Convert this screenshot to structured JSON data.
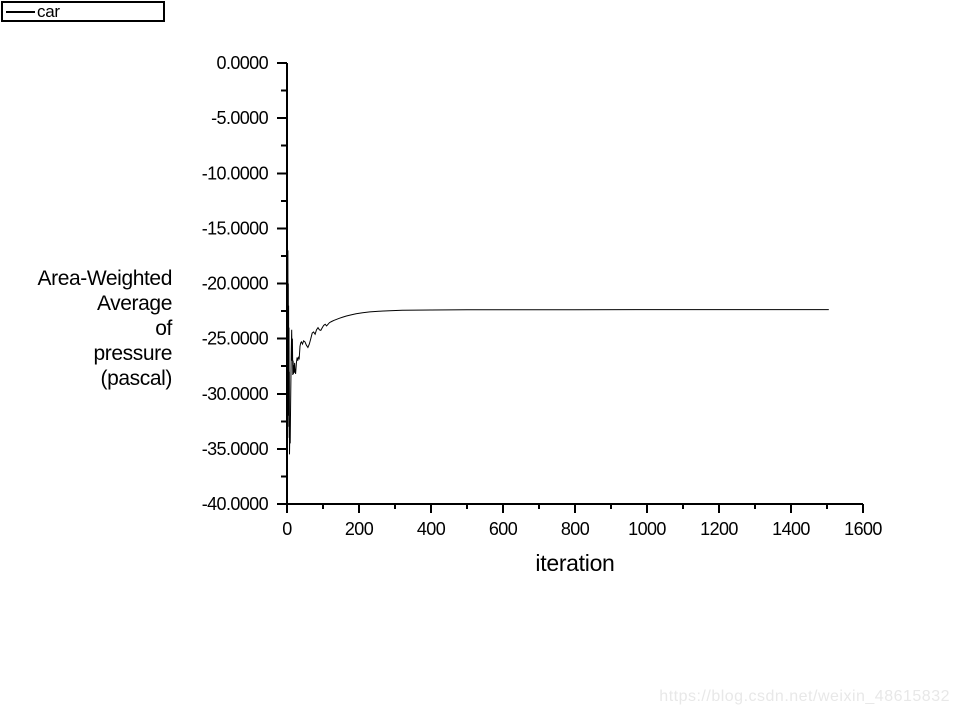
{
  "legend": {
    "series_label": "car"
  },
  "axis_titles": {
    "x": "iteration",
    "y_lines": [
      "Area-Weighted",
      "Average",
      "of",
      "pressure",
      "(pascal)"
    ]
  },
  "watermark": {
    "text": "https://blog.csdn.net/weixin_48615832",
    "color": "#e8e8e8"
  },
  "colors": {
    "foreground": "#000000",
    "background": "#ffffff",
    "series": "#000000"
  },
  "chart_data": {
    "type": "line",
    "title": "",
    "xlabel": "iteration",
    "ylabel": "Area-Weighted Average of pressure (pascal)",
    "xlim": [
      0,
      1600
    ],
    "ylim": [
      -40,
      0
    ],
    "grid": false,
    "legend_position": "top-left-outside",
    "x_ticks": [
      0,
      200,
      400,
      600,
      800,
      1000,
      1200,
      1400,
      1600
    ],
    "x_tick_labels": [
      "0",
      "200",
      "400",
      "600",
      "800",
      "1000",
      "1200",
      "1400",
      "1600"
    ],
    "x_minor_tick_step": 100,
    "y_ticks": [
      0,
      -5,
      -10,
      -15,
      -20,
      -25,
      -30,
      -35,
      -40
    ],
    "y_tick_labels": [
      "0.0000",
      "-5.0000",
      "-10.0000",
      "-15.0000",
      "-20.0000",
      "-25.0000",
      "-30.0000",
      "-35.0000",
      "-40.0000"
    ],
    "y_minor_tick_step": 2.5,
    "series": [
      {
        "name": "car",
        "color": "#000000",
        "points": [
          [
            1,
            -15.3
          ],
          [
            2,
            -30.5
          ],
          [
            2.5,
            -17.0
          ],
          [
            3,
            -32.0
          ],
          [
            3.5,
            -20.0
          ],
          [
            4,
            -31.0
          ],
          [
            4.5,
            -22.0
          ],
          [
            5,
            -33.0
          ],
          [
            5.5,
            -24.0
          ],
          [
            6,
            -34.0
          ],
          [
            6.5,
            -28.0
          ],
          [
            7,
            -35.5
          ],
          [
            8,
            -33.0
          ],
          [
            9,
            -34.5
          ],
          [
            10,
            -31.0
          ],
          [
            11,
            -28.0
          ],
          [
            12,
            -26.0
          ],
          [
            13,
            -24.2
          ],
          [
            14,
            -27.0
          ],
          [
            15,
            -25.0
          ],
          [
            16,
            -28.3
          ],
          [
            17,
            -27.0
          ],
          [
            18,
            -28.2
          ],
          [
            19,
            -27.4
          ],
          [
            20,
            -28.1
          ],
          [
            21,
            -27.2
          ],
          [
            22,
            -27.8
          ],
          [
            24,
            -28.2
          ],
          [
            26,
            -27.2
          ],
          [
            28,
            -26.7
          ],
          [
            30,
            -27.0
          ],
          [
            32,
            -26.7
          ],
          [
            34,
            -26.8
          ],
          [
            36,
            -25.7
          ],
          [
            38,
            -25.4
          ],
          [
            40,
            -25.3
          ],
          [
            43,
            -25.5
          ],
          [
            46,
            -25.2
          ],
          [
            50,
            -25.3
          ],
          [
            54,
            -25.6
          ],
          [
            58,
            -25.8
          ],
          [
            62,
            -25.5
          ],
          [
            66,
            -25.0
          ],
          [
            70,
            -24.5
          ],
          [
            74,
            -24.4
          ],
          [
            78,
            -24.6
          ],
          [
            82,
            -24.2
          ],
          [
            86,
            -24.0
          ],
          [
            90,
            -24.2
          ],
          [
            94,
            -24.25
          ],
          [
            98,
            -24.0
          ],
          [
            102,
            -23.8
          ],
          [
            106,
            -23.7
          ],
          [
            110,
            -23.85
          ],
          [
            114,
            -23.7
          ],
          [
            118,
            -23.55
          ],
          [
            124,
            -23.45
          ],
          [
            130,
            -23.35
          ],
          [
            138,
            -23.25
          ],
          [
            146,
            -23.15
          ],
          [
            155,
            -23.05
          ],
          [
            165,
            -22.95
          ],
          [
            178,
            -22.85
          ],
          [
            192,
            -22.75
          ],
          [
            210,
            -22.65
          ],
          [
            230,
            -22.58
          ],
          [
            255,
            -22.52
          ],
          [
            285,
            -22.47
          ],
          [
            320,
            -22.43
          ],
          [
            360,
            -22.41
          ],
          [
            400,
            -22.4
          ],
          [
            500,
            -22.39
          ],
          [
            650,
            -22.38
          ],
          [
            800,
            -22.38
          ],
          [
            1000,
            -22.37
          ],
          [
            1200,
            -22.37
          ],
          [
            1505,
            -22.37
          ]
        ]
      }
    ]
  }
}
